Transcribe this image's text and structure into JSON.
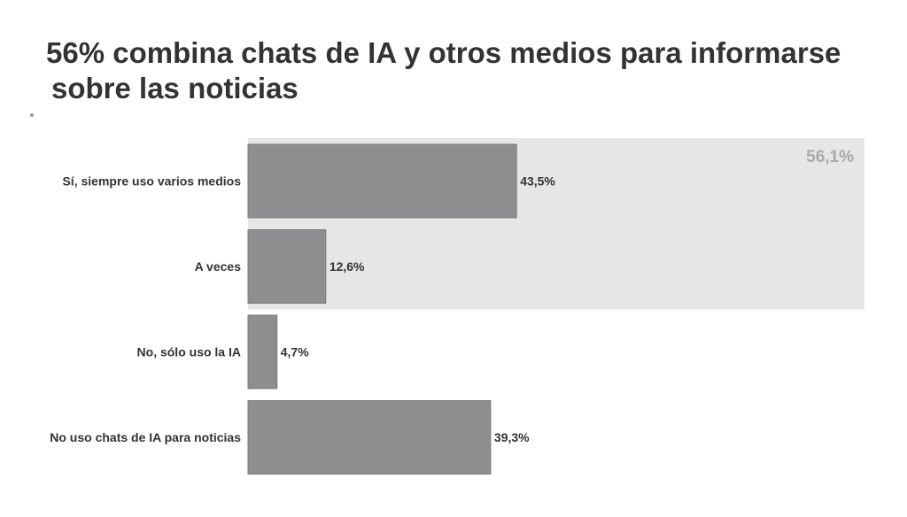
{
  "title": {
    "line1": "56% combina chats de IA y otros medios para informarse",
    "line2": "sobre las noticias"
  },
  "chart_data": {
    "type": "bar",
    "orientation": "horizontal",
    "categories": [
      "Sí, siempre uso varios medios",
      "A veces",
      "No, sólo uso la IA",
      "No uso chats de IA para noticias"
    ],
    "values": [
      43.5,
      12.6,
      4.7,
      39.3
    ],
    "value_labels": [
      "43,5%",
      "12,6%",
      "4,7%",
      "39,3%"
    ],
    "unit": "%",
    "xlim": [
      0,
      100
    ],
    "grid": false,
    "highlight": {
      "categories": [
        "Sí, siempre uso varios medios",
        "A veces"
      ],
      "label": "56,1%",
      "value": 56.1
    },
    "colors": {
      "bar": "#8e8e90",
      "bar_edge": "#7c7c7e",
      "highlight_band": "#e6e6e7",
      "highlight_text": "#a9a9a9"
    }
  }
}
